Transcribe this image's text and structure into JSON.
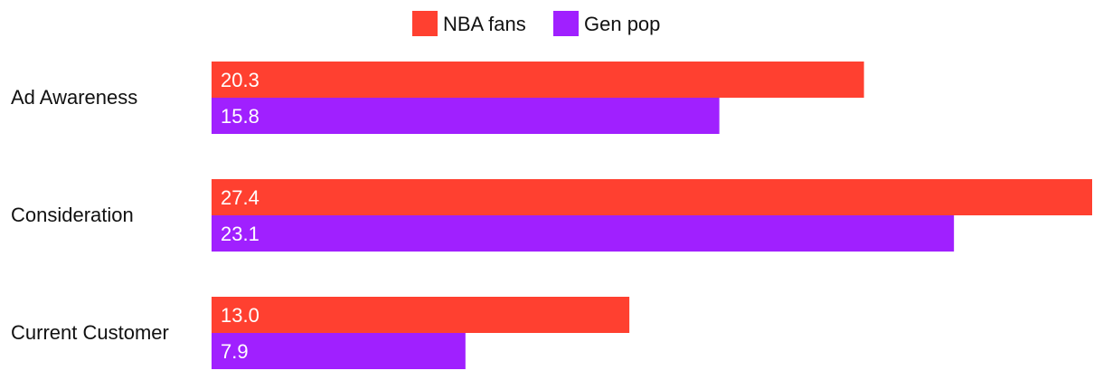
{
  "chart_data": {
    "type": "bar",
    "orientation": "horizontal",
    "categories": [
      "Ad Awareness",
      "Consideration",
      "Current Customer"
    ],
    "series": [
      {
        "name": "NBA fans",
        "color": "#ff4030",
        "values": [
          20.3,
          27.4,
          13.0
        ],
        "labels": [
          "20.3",
          "27.4",
          "13.0"
        ]
      },
      {
        "name": "Gen pop",
        "color": "#a020ff",
        "values": [
          15.8,
          23.1,
          7.9
        ],
        "labels": [
          "15.8",
          "23.1",
          "7.9"
        ]
      }
    ],
    "xlim": [
      0,
      27.4
    ],
    "grid": false,
    "legend_position": "top-center",
    "data_labels": "inside-left"
  }
}
